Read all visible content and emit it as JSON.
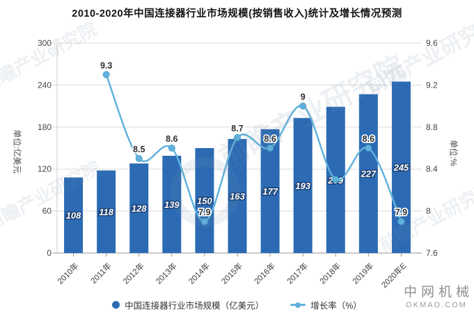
{
  "title": "2010-2020年中国连接器行业市场规模(按销售收入)统计及增长情况预测",
  "watermark_text": "前瞻产业研究院",
  "brand": {
    "name": "中网机械",
    "site": "OKMAO.COM"
  },
  "legend": {
    "items": [
      {
        "label": "中国连接器行业市场规模（亿美元）",
        "marker": "circle",
        "color": "#2c6bb4"
      },
      {
        "label": "增长率（%）",
        "marker": "line",
        "color": "#61b2dc"
      }
    ]
  },
  "chart_data": {
    "type": "bar",
    "title": "2010-2020年中国连接器行业市场规模(按销售收入)统计及增长情况预测",
    "categories": [
      "2010年",
      "2011年",
      "2012年",
      "2013年",
      "2014年",
      "2015年",
      "2016年",
      "2017年",
      "2018年",
      "2019年",
      "2020年E"
    ],
    "series": [
      {
        "name": "中国连接器行业市场规模（亿美元）",
        "type": "bar",
        "axis": "left",
        "color": "#2c6bb4",
        "values": [
          108,
          118,
          128,
          139,
          150,
          163,
          177,
          193,
          209,
          227,
          245
        ]
      },
      {
        "name": "增长率（%）",
        "type": "line",
        "axis": "right",
        "color": "#61b2dc",
        "values": [
          null,
          9.3,
          8.5,
          8.6,
          7.9,
          8.7,
          8.6,
          9,
          8.3,
          8.6,
          7.9
        ],
        "labels": [
          "",
          "9.3",
          "8.5",
          "8.6",
          "7.9",
          "8.7",
          "8.6",
          "9",
          "",
          "8.6",
          "7.9"
        ]
      }
    ],
    "left_axis": {
      "name": "单位:亿美元",
      "min": 0,
      "max": 300,
      "ticks": [
        0,
        60,
        120,
        180,
        240,
        300
      ]
    },
    "right_axis": {
      "name": "单位:%",
      "min": 7.6,
      "max": 9.6,
      "ticks": [
        7.6,
        8,
        8.4,
        8.8,
        9.2,
        9.6
      ]
    },
    "grid": true,
    "legend_position": "bottom"
  }
}
